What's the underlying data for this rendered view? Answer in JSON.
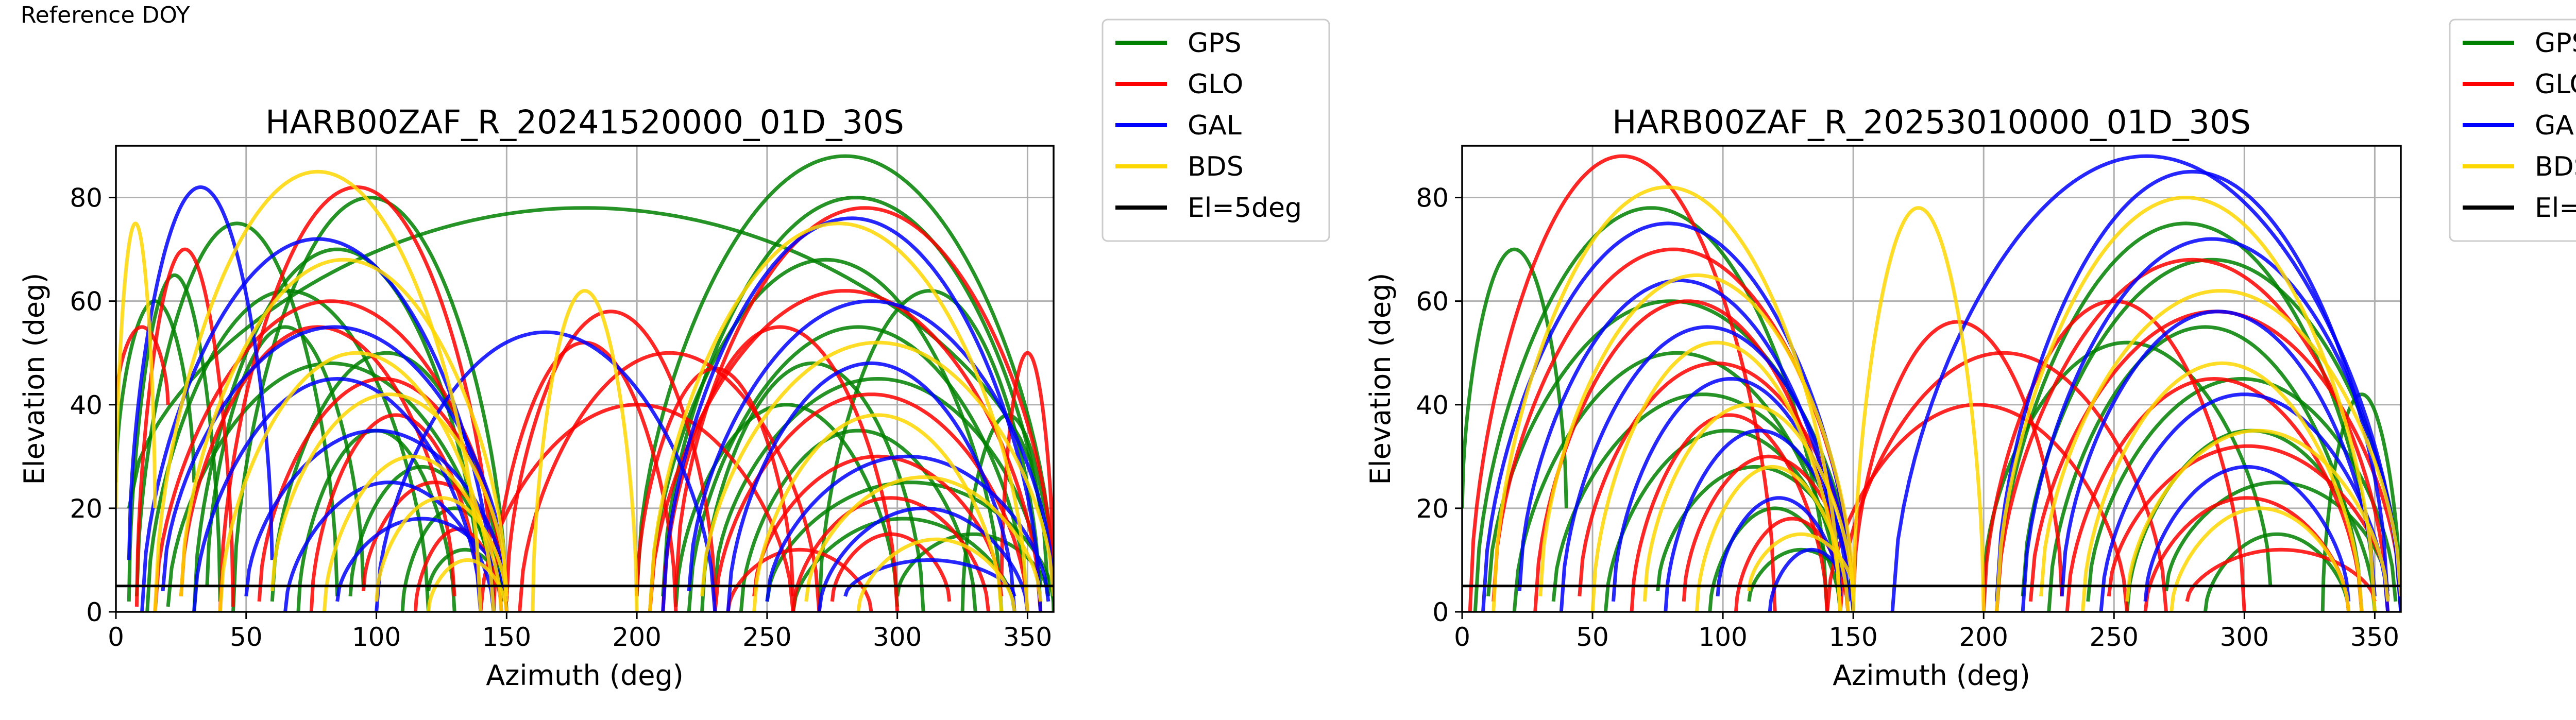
{
  "figure_label": "Reference DOY",
  "colors": {
    "GPS": "#008000",
    "GLO": "#ff0000",
    "GAL": "#0000ff",
    "BDS": "#ffd700",
    "mask": "#000000",
    "grid": "#b0b0b0"
  },
  "chart_data": [
    {
      "type": "scatter",
      "title": "HARB00ZAF_R_20241520000_01D_30S",
      "xlabel": "Azimuth (deg)",
      "ylabel": "Elevation (deg)",
      "xlim": [
        0,
        360
      ],
      "ylim": [
        0,
        90
      ],
      "xticks": [
        0,
        50,
        100,
        150,
        200,
        250,
        300,
        350
      ],
      "yticks": [
        0,
        20,
        40,
        60,
        80
      ],
      "grid": true,
      "legend_position": "outside-right",
      "series": [
        {
          "name": "GPS",
          "color": "#008000",
          "passes": [
            [
              5,
              2,
              40,
              65
            ],
            [
              8,
              3,
              85,
              75
            ],
            [
              12,
              0,
              120,
              62
            ],
            [
              20,
              1,
              145,
              48
            ],
            [
              30,
              0,
              140,
              70
            ],
            [
              35,
              5,
              95,
              55
            ],
            [
              45,
              0,
              150,
              80
            ],
            [
              60,
              2,
              148,
              50
            ],
            [
              70,
              0,
              130,
              35
            ],
            [
              90,
              3,
              145,
              28
            ],
            [
              110,
              0,
              150,
              20
            ],
            [
              120,
              4,
              148,
              12
            ],
            [
              205,
              0,
              340,
              68
            ],
            [
              210,
              3,
              358,
              80
            ],
            [
              220,
              0,
              350,
              55
            ],
            [
              230,
              5,
              355,
              45
            ],
            [
              240,
              0,
              330,
              35
            ],
            [
              250,
              2,
              360,
              25
            ],
            [
              260,
              0,
              345,
              18
            ],
            [
              215,
              1,
              300,
              40
            ],
            [
              225,
              0,
              310,
              48
            ],
            [
              200,
              4,
              360,
              88
            ],
            [
              270,
              0,
              355,
              62
            ],
            [
              300,
              3,
              358,
              15
            ],
            [
              325,
              0,
              360,
              38
            ],
            [
              355,
              20,
              5,
              78
            ],
            [
              0,
              25,
              30,
              60
            ]
          ]
        },
        {
          "name": "GLO",
          "color": "#ff0000",
          "passes": [
            [
              8,
              1,
              45,
              70
            ],
            [
              15,
              0,
              150,
              60
            ],
            [
              25,
              3,
              130,
              55
            ],
            [
              40,
              0,
              145,
              82
            ],
            [
              55,
              2,
              150,
              45
            ],
            [
              75,
              0,
              140,
              38
            ],
            [
              95,
              4,
              150,
              25
            ],
            [
              115,
              0,
              148,
              16
            ],
            [
              140,
              0,
              260,
              40
            ],
            [
              150,
              2,
              230,
              58
            ],
            [
              155,
              0,
              270,
              50
            ],
            [
              145,
              0,
              215,
              52
            ],
            [
              205,
              0,
              355,
              62
            ],
            [
              215,
              5,
              360,
              78
            ],
            [
              230,
              0,
              350,
              42
            ],
            [
              245,
              3,
              340,
              30
            ],
            [
              260,
              0,
              335,
              22
            ],
            [
              275,
              2,
              320,
              15
            ],
            [
              210,
              0,
              300,
              55
            ],
            [
              200,
              3,
              260,
              47
            ],
            [
              235,
              0,
              290,
              12
            ],
            [
              0,
              40,
              20,
              55
            ],
            [
              340,
              5,
              360,
              50
            ]
          ]
        },
        {
          "name": "GAL",
          "color": "#0000ff",
          "passes": [
            [
              10,
              0,
              145,
              72
            ],
            [
              18,
              4,
              150,
              55
            ],
            [
              30,
              0,
              140,
              45
            ],
            [
              50,
              3,
              150,
              35
            ],
            [
              65,
              0,
              145,
              25
            ],
            [
              85,
              2,
              150,
              18
            ],
            [
              100,
              0,
              230,
              54
            ],
            [
              210,
              0,
              355,
              76
            ],
            [
              220,
              4,
              360,
              60
            ],
            [
              235,
              0,
              345,
              48
            ],
            [
              250,
              2,
              358,
              30
            ],
            [
              270,
              0,
              350,
              20
            ],
            [
              280,
              3,
              345,
              10
            ],
            [
              5,
              10,
              60,
              82
            ]
          ]
        },
        {
          "name": "BDS",
          "color": "#ffd700",
          "passes": [
            [
              15,
              0,
              140,
              85
            ],
            [
              25,
              3,
              150,
              68
            ],
            [
              40,
              0,
              145,
              50
            ],
            [
              60,
              4,
              150,
              42
            ],
            [
              80,
              0,
              148,
              30
            ],
            [
              100,
              2,
              150,
              22
            ],
            [
              120,
              0,
              150,
              10
            ],
            [
              160,
              0,
              200,
              62
            ],
            [
              205,
              0,
              350,
              75
            ],
            [
              225,
              3,
              360,
              52
            ],
            [
              245,
              0,
              340,
              38
            ],
            [
              265,
              2,
              355,
              26
            ],
            [
              285,
              0,
              345,
              14
            ],
            [
              0,
              20,
              15,
              75
            ]
          ]
        }
      ],
      "reference_line": {
        "name": "El=5deg",
        "y": 5
      }
    },
    {
      "type": "scatter",
      "title": "HARB00ZAF_R_20253010000_01D_30S",
      "xlabel": "Azimuth (deg)",
      "ylabel": "Elevation (deg)",
      "xlim": [
        0,
        360
      ],
      "ylim": [
        0,
        90
      ],
      "xticks": [
        0,
        50,
        100,
        150,
        200,
        250,
        300,
        350
      ],
      "yticks": [
        0,
        20,
        40,
        60,
        80
      ],
      "grid": true,
      "legend_position": "outside-right",
      "series": [
        {
          "name": "GPS",
          "color": "#008000",
          "passes": [
            [
              5,
              0,
              140,
              78
            ],
            [
              10,
              3,
              150,
              60
            ],
            [
              20,
              0,
              145,
              50
            ],
            [
              35,
              2,
              150,
              42
            ],
            [
              55,
              0,
              148,
              35
            ],
            [
              75,
              4,
              150,
              28
            ],
            [
              95,
              0,
              145,
              20
            ],
            [
              110,
              2,
              150,
              12
            ],
            [
              205,
              0,
              350,
              75
            ],
            [
              215,
              3,
              360,
              68
            ],
            [
              225,
              0,
              345,
              55
            ],
            [
              240,
              2,
              358,
              45
            ],
            [
              255,
              0,
              350,
              35
            ],
            [
              270,
              4,
              355,
              25
            ],
            [
              285,
              0,
              340,
              15
            ],
            [
              200,
              5,
              310,
              52
            ],
            [
              0,
              20,
              40,
              70
            ],
            [
              330,
              0,
              360,
              42
            ]
          ]
        },
        {
          "name": "GLO",
          "color": "#ff0000",
          "passes": [
            [
              3,
              0,
              120,
              88
            ],
            [
              12,
              2,
              150,
              70
            ],
            [
              28,
              0,
              145,
              60
            ],
            [
              45,
              3,
              150,
              48
            ],
            [
              65,
              0,
              140,
              38
            ],
            [
              85,
              2,
              150,
              30
            ],
            [
              105,
              0,
              148,
              18
            ],
            [
              140,
              0,
              255,
              40
            ],
            [
              150,
              3,
              230,
              56
            ],
            [
              145,
              0,
              270,
              50
            ],
            [
              205,
              0,
              355,
              68
            ],
            [
              218,
              2,
              360,
              58
            ],
            [
              232,
              0,
              345,
              45
            ],
            [
              248,
              3,
              355,
              32
            ],
            [
              262,
              0,
              340,
              22
            ],
            [
              278,
              2,
              350,
              12
            ],
            [
              200,
              0,
              300,
              60
            ]
          ]
        },
        {
          "name": "GAL",
          "color": "#0000ff",
          "passes": [
            [
              8,
              0,
              150,
              75
            ],
            [
              22,
              4,
              145,
              64
            ],
            [
              38,
              0,
              150,
              55
            ],
            [
              58,
              2,
              148,
              45
            ],
            [
              78,
              0,
              150,
              35
            ],
            [
              98,
              3,
              145,
              22
            ],
            [
              118,
              0,
              150,
              12
            ],
            [
              165,
              0,
              360,
              88
            ],
            [
              205,
              2,
              355,
              85
            ],
            [
              215,
              0,
              360,
              72
            ],
            [
              230,
              3,
              350,
              58
            ],
            [
              245,
              0,
              355,
              42
            ],
            [
              262,
              2,
              340,
              28
            ]
          ]
        },
        {
          "name": "BDS",
          "color": "#ffd700",
          "passes": [
            [
              12,
              0,
              145,
              82
            ],
            [
              30,
              3,
              150,
              65
            ],
            [
              50,
              0,
              145,
              52
            ],
            [
              70,
              2,
              150,
              40
            ],
            [
              90,
              0,
              148,
              28
            ],
            [
              110,
              4,
              150,
              15
            ],
            [
              150,
              0,
              200,
              78
            ],
            [
              205,
              0,
              350,
              80
            ],
            [
              222,
              3,
              360,
              62
            ],
            [
              238,
              0,
              345,
              48
            ],
            [
              255,
              2,
              355,
              35
            ],
            [
              272,
              0,
              340,
              20
            ]
          ]
        }
      ],
      "reference_line": {
        "name": "El=5deg",
        "y": 5
      }
    }
  ]
}
